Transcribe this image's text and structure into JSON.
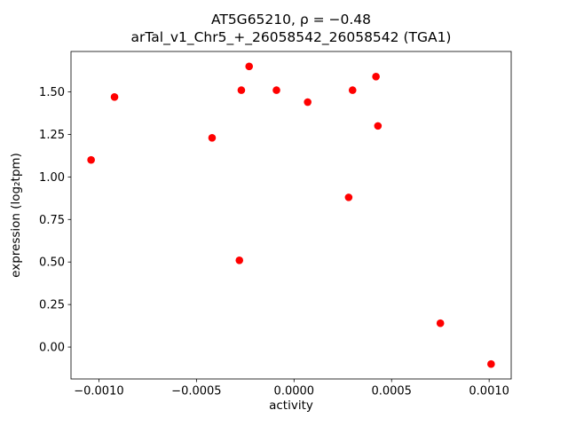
{
  "chart_data": {
    "type": "scatter",
    "title_line1": "AT5G65210, ρ = −0.48",
    "title_line2": "arTal_v1_Chr5_+_26058542_26058542 (TGA1)",
    "xlabel": "activity",
    "ylabel": "expression (log₂tpm)",
    "legend": "none",
    "grid": false,
    "marker_color": "#ff0000",
    "marker_shape": "circle",
    "xlim": [
      -0.001143,
      0.001113
    ],
    "ylim": [
      -0.1875,
      1.7375
    ],
    "xticks": {
      "values": [
        -0.001,
        -0.0005,
        0.0,
        0.0005,
        0.001
      ],
      "labels": [
        "−0.0010",
        "−0.0005",
        "0.0000",
        "0.0005",
        "0.0010"
      ]
    },
    "yticks": {
      "values": [
        0.0,
        0.25,
        0.5,
        0.75,
        1.0,
        1.25,
        1.5
      ],
      "labels": [
        "0.00",
        "0.25",
        "0.50",
        "0.75",
        "1.00",
        "1.25",
        "1.50"
      ]
    },
    "points": [
      {
        "x": -0.00104,
        "y": 1.1
      },
      {
        "x": -0.00092,
        "y": 1.47
      },
      {
        "x": -0.00042,
        "y": 1.23
      },
      {
        "x": -0.00027,
        "y": 1.51
      },
      {
        "x": -0.00023,
        "y": 1.65
      },
      {
        "x": -9e-05,
        "y": 1.51
      },
      {
        "x": 7e-05,
        "y": 1.44
      },
      {
        "x": 0.0003,
        "y": 1.51
      },
      {
        "x": 0.00042,
        "y": 1.59
      },
      {
        "x": 0.00043,
        "y": 1.3
      },
      {
        "x": 0.00028,
        "y": 0.88
      },
      {
        "x": -0.00028,
        "y": 0.51
      },
      {
        "x": 0.00075,
        "y": 0.14
      },
      {
        "x": 0.00101,
        "y": -0.1
      }
    ]
  }
}
